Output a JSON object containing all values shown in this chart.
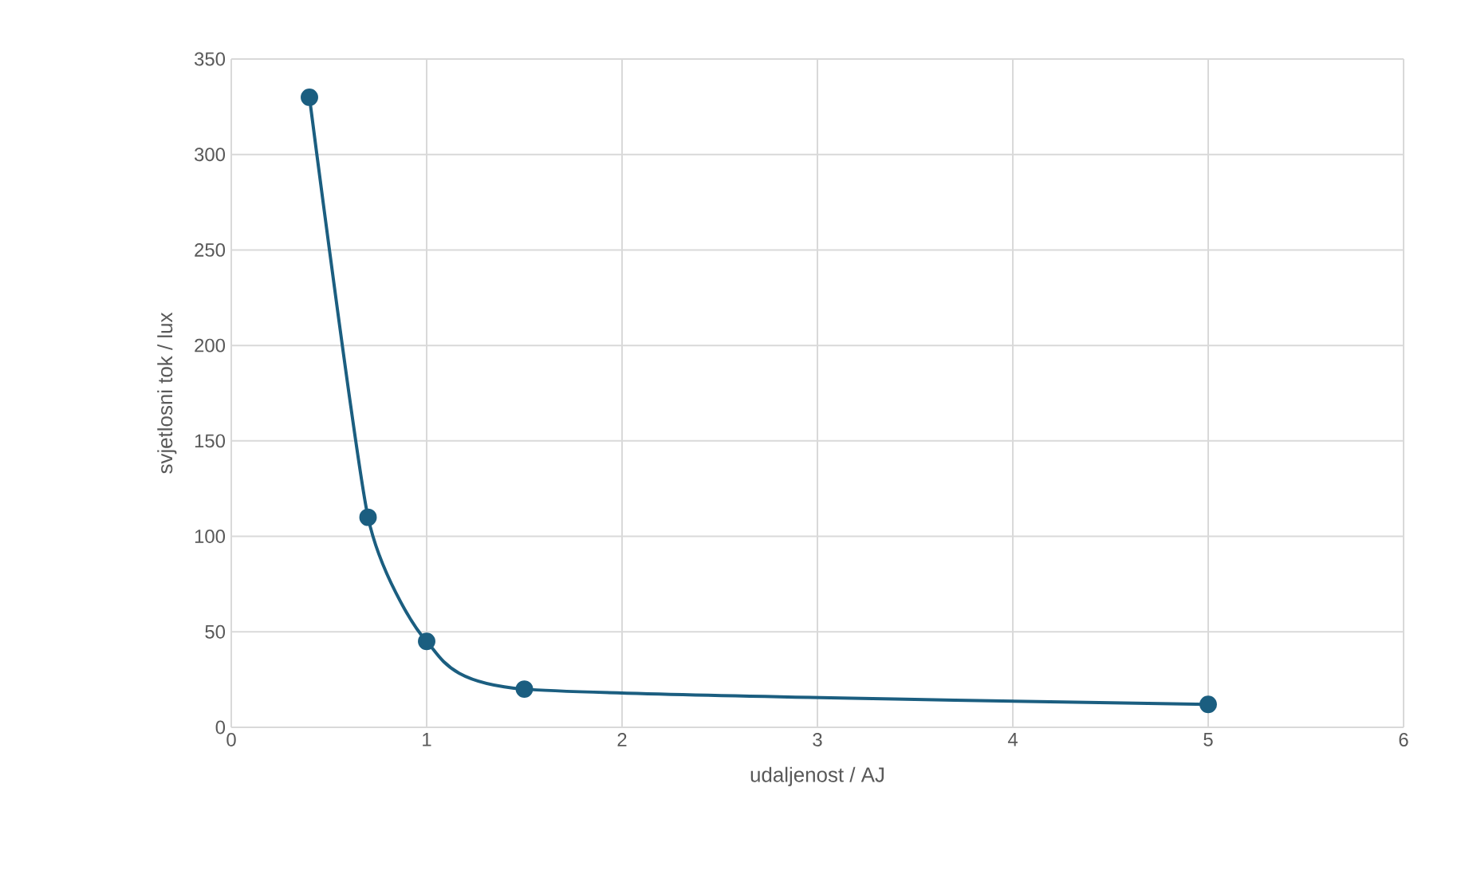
{
  "chart_data": {
    "type": "line",
    "xlabel": "udaljenost / AJ",
    "ylabel": "svjetlosni tok / lux",
    "x": [
      0.4,
      0.7,
      1,
      1.5,
      5
    ],
    "series": [
      {
        "color": "#1b5e80",
        "values": [
          330,
          110,
          45,
          20,
          12
        ]
      }
    ],
    "xlim": [
      0,
      6
    ],
    "xticks": [
      0,
      1,
      2,
      3,
      4,
      5,
      6
    ],
    "ylim": [
      0,
      350
    ],
    "yticks": [
      0,
      50,
      100,
      150,
      200,
      250,
      300,
      350
    ],
    "grid": true,
    "marker": "circle",
    "line_style": "solid"
  }
}
